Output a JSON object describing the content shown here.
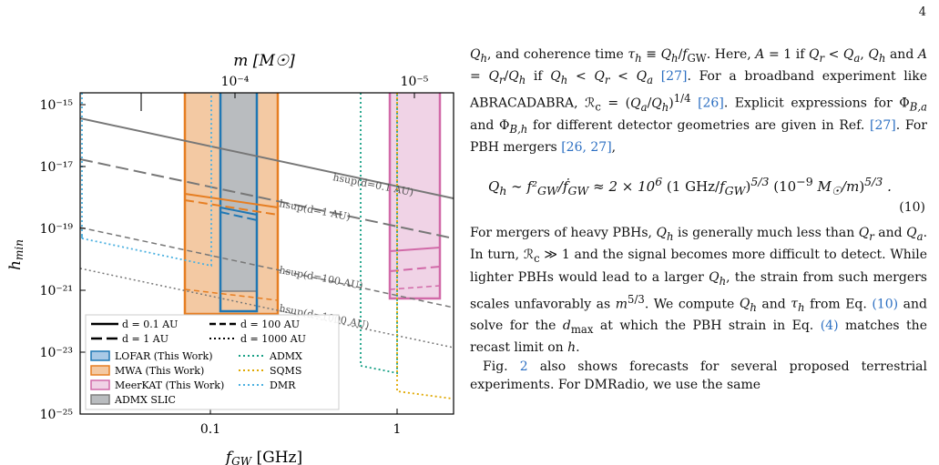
{
  "page_number": "4",
  "figure": {
    "top_axis_label": "m [M☉]",
    "top_ticks": [
      "10⁻⁴",
      "10⁻⁵"
    ],
    "x_label": "fGW [GHz]",
    "y_label": "hmin",
    "x_ticks": [
      "0.1",
      "1"
    ],
    "y_ticks": [
      "10⁻¹⁵",
      "10⁻¹⁷",
      "10⁻¹⁹",
      "10⁻²¹",
      "10⁻²³",
      "10⁻²⁵"
    ],
    "line_labels": [
      "hsup(d=0.1 AU)",
      "hsup(d=1 AU)",
      "hsup(d=100 AU)",
      "hsup(d=1000 AU)"
    ],
    "legend_lines": [
      "d = 0.1 AU",
      "d = 100 AU",
      "d = 1 AU",
      "d = 1000 AU"
    ],
    "legend_patches": [
      "LOFAR (This Work)",
      "MWA (This Work)",
      "MeerKAT (This Work)",
      "ADMX SLIC"
    ],
    "legend_dotted": [
      "ADMX",
      "SQMS",
      "DMR"
    ],
    "colors": {
      "lofar": "#1f77b4",
      "mwa": "#e67e22",
      "meerkat": "#d16aa8",
      "slic": "#7f7f7f",
      "admx": "#17a085",
      "sqms": "#e0a800",
      "dmr": "#4ab0e0",
      "hsup": "#777777"
    }
  },
  "text": {
    "p1": "Qh, and coherence time τh ≡ Qh/fGW. Here, A = 1 if Qr < Qa, Qh and A = Qr/Qh if Qh < Qr < Qa [27]. For a broadband experiment like ABRACADABRA, ℛc = (Qa/Qh)^1/4 [26]. Explicit expressions for ΦB,a and ΦB,h for different detector geometries are given in Ref. [27]. For PBH mergers [26, 27],",
    "equation": "Qh ∼ f²GW / ḟGW ≈ 2 × 10⁶ (1 GHz / fGW)^5/3 (10⁻⁹ M☉ / m)^5/3 .",
    "equation_number": "(10)",
    "p2": "For mergers of heavy PBHs, Qh is generally much less than Qr and Qa. In turn, ℛc ≫ 1 and the signal becomes more difficult to detect. While lighter PBHs would lead to a larger Qh, the strain from such mergers scales unfavorably as m^5/3. We compute Qh and τh from Eq. (10) and solve for the dmax at which the PBH strain in Eq. (4) matches the recast limit on h.",
    "p3": "Fig. 2 also shows forecasts for several proposed terrestrial experiments. For DMRadio, we use the same"
  }
}
